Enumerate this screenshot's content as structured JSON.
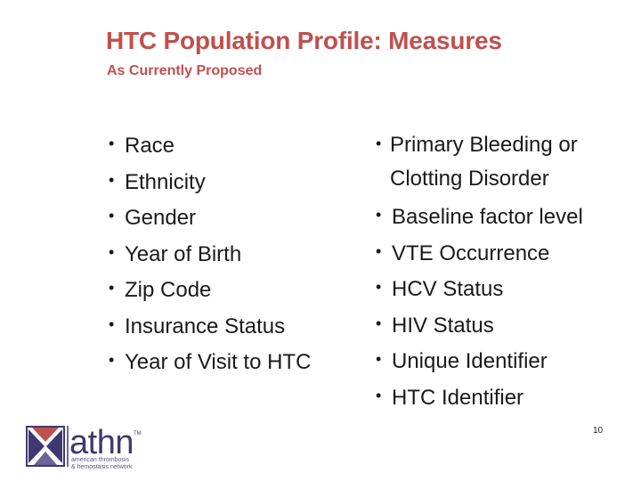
{
  "slide": {
    "title": "HTC Population Profile: Measures",
    "subtitle": "As Currently Proposed",
    "bullet_glyph": "•",
    "left_items": [
      "Race",
      "Ethnicity",
      "Gender",
      "Year of Birth",
      "Zip Code",
      "Insurance Status",
      "Year of Visit to HTC"
    ],
    "right_items": [
      "Primary Bleeding or Clotting Disorder",
      "Baseline factor level",
      "VTE Occurrence",
      "HCV Status",
      "HIV Status",
      "Unique Identifier",
      "HTC Identifier"
    ],
    "page_number": "10"
  },
  "logo": {
    "wordmark": "athn",
    "trademark": "TM",
    "tagline_line1": "american thrombosis",
    "tagline_line2": "& hemostasis network",
    "colors": {
      "navy": "#3f3870",
      "red": "#c0504d"
    }
  },
  "colors": {
    "title": "#c0504d",
    "body_text": "#1a1a1a",
    "background": "#ffffff"
  }
}
